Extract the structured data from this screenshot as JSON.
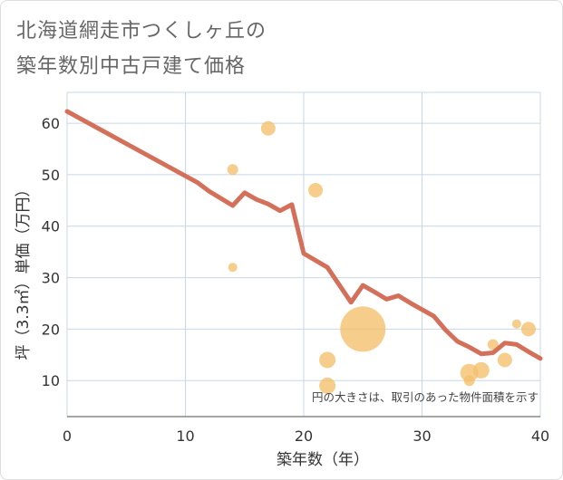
{
  "title": {
    "line1": "北海道網走市つくしヶ丘の",
    "line2": "築年数別中古戸建て価格"
  },
  "colors": {
    "trend": "#d4705a",
    "bubble": "#f4c16e",
    "grid": "#c8d7e6",
    "plot_bg": "#ffffff"
  },
  "chart_data": {
    "type": "scatter",
    "title": "北海道網走市つくしヶ丘の築年数別中古戸建て価格",
    "xlabel": "築年数（年）",
    "ylabel": "坪（3.3㎡）単価（万円）",
    "xlim": [
      0,
      40
    ],
    "ylim": [
      3,
      66
    ],
    "x_ticks": [
      0,
      10,
      20,
      30,
      40
    ],
    "y_ticks": [
      10,
      20,
      30,
      40,
      50,
      60
    ],
    "grid": true,
    "note": "円の大きさは、取引のあった物件面積を示す",
    "trend_line": {
      "x": [
        0,
        11,
        12,
        14,
        15,
        16,
        17,
        18,
        19,
        20,
        22,
        24,
        25,
        26,
        27,
        28,
        29,
        31,
        32,
        33,
        34,
        35,
        36,
        37,
        38,
        39,
        40
      ],
      "y": [
        62.3,
        48.5,
        46.8,
        44,
        46.5,
        45.2,
        44.3,
        43,
        44.2,
        34.7,
        32,
        25.2,
        28.5,
        27.2,
        25.8,
        26.5,
        25.1,
        22.5,
        19.8,
        17.6,
        16.5,
        15.2,
        15.4,
        17.3,
        17,
        15.6,
        14.3
      ]
    },
    "bubbles": [
      {
        "x": 14,
        "y": 51,
        "r": 6
      },
      {
        "x": 14,
        "y": 32,
        "r": 5
      },
      {
        "x": 17,
        "y": 59,
        "r": 8
      },
      {
        "x": 21,
        "y": 47,
        "r": 8
      },
      {
        "x": 22,
        "y": 14,
        "r": 9
      },
      {
        "x": 22,
        "y": 9,
        "r": 9
      },
      {
        "x": 25,
        "y": 20,
        "r": 25
      },
      {
        "x": 34,
        "y": 11.5,
        "r": 10
      },
      {
        "x": 34,
        "y": 10,
        "r": 6
      },
      {
        "x": 35,
        "y": 12,
        "r": 9
      },
      {
        "x": 36,
        "y": 17,
        "r": 6
      },
      {
        "x": 37,
        "y": 14,
        "r": 8
      },
      {
        "x": 38,
        "y": 21,
        "r": 5
      },
      {
        "x": 39,
        "y": 20,
        "r": 8
      }
    ]
  }
}
